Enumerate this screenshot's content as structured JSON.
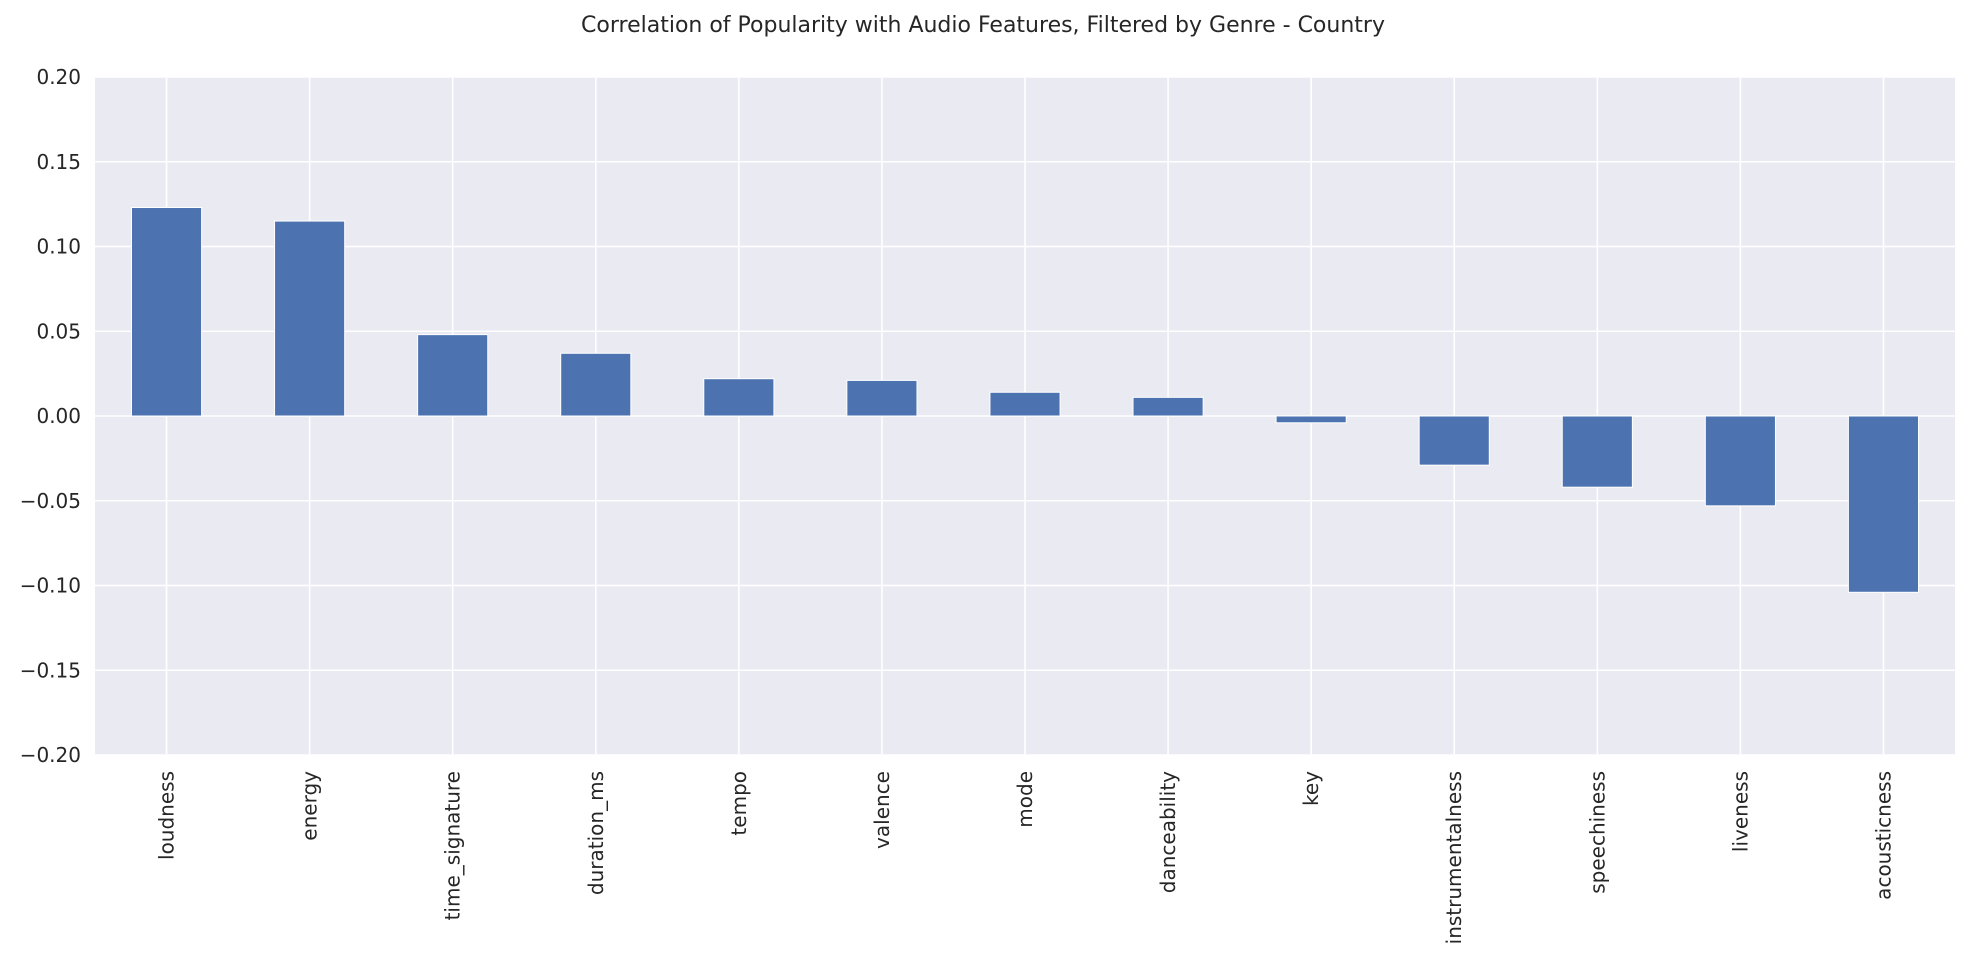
{
  "chart_data": {
    "type": "bar",
    "title": "Correlation of Popularity with Audio Features, Filtered by Genre - Country",
    "xlabel": "",
    "ylabel": "",
    "ylim": [
      -0.2,
      0.2
    ],
    "yticks": [
      "0.20",
      "0.15",
      "0.10",
      "0.05",
      "0.00",
      "−0.05",
      "−0.10",
      "−0.15",
      "−0.20"
    ],
    "ytick_values": [
      0.2,
      0.15,
      0.1,
      0.05,
      0.0,
      -0.05,
      -0.1,
      -0.15,
      -0.2
    ],
    "categories": [
      "loudness",
      "energy",
      "time_signature",
      "duration_ms",
      "tempo",
      "valence",
      "mode",
      "danceability",
      "key",
      "instrumentalness",
      "speechiness",
      "liveness",
      "acousticness"
    ],
    "values": [
      0.123,
      0.115,
      0.048,
      0.037,
      0.022,
      0.021,
      0.014,
      0.011,
      -0.004,
      -0.029,
      -0.042,
      -0.053,
      -0.104
    ],
    "grid": true,
    "colors": {
      "bar": "#4c72b0",
      "background": "#eaeaf2",
      "grid": "#ffffff"
    }
  }
}
